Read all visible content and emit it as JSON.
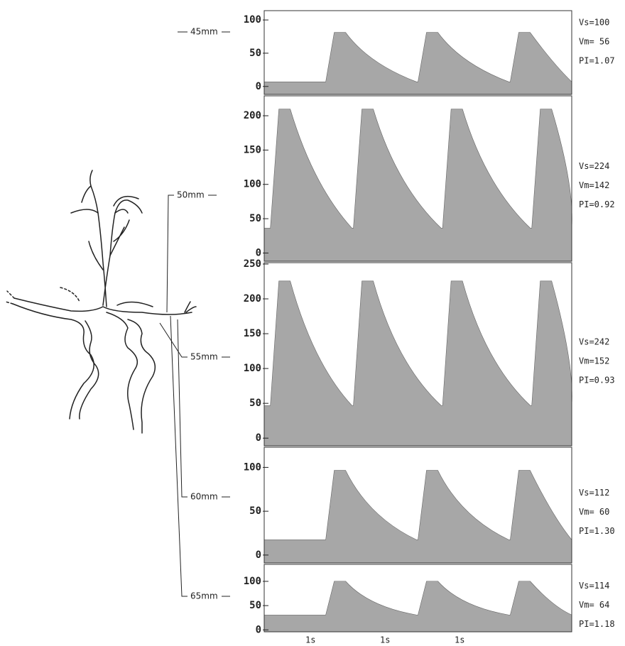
{
  "figure": {
    "panels": [
      {
        "depth": "45mm",
        "ylim": [
          -12,
          114
        ],
        "yticks": [
          0,
          50,
          100
        ],
        "stats": [
          "Vs=100",
          "Vm= 56",
          "PI=1.07"
        ]
      },
      {
        "depth": "50mm",
        "ylim": [
          -12,
          229
        ],
        "yticks": [
          0,
          50,
          100,
          150,
          200
        ],
        "stats": [
          "Vs=224",
          "Vm=142",
          "PI=0.92"
        ]
      },
      {
        "depth": "55mm",
        "ylim": [
          -11,
          252
        ],
        "yticks": [
          0,
          50,
          100,
          150,
          200,
          250
        ],
        "stats": [
          "Vs=242",
          "Vm=152",
          "PI=0.93"
        ]
      },
      {
        "depth": "60mm",
        "ylim": [
          -9,
          123
        ],
        "yticks": [
          0,
          50,
          100
        ],
        "stats": [
          "Vs=112",
          "Vm= 60",
          "PI=1.30"
        ]
      },
      {
        "depth": "65mm",
        "ylim": [
          -4,
          135
        ],
        "yticks": [
          0,
          50,
          100
        ],
        "stats": [
          "Vs=114",
          "Vm= 64",
          "PI=1.18"
        ]
      }
    ],
    "time_marks": [
      "1s",
      "1s",
      "1s"
    ]
  }
}
